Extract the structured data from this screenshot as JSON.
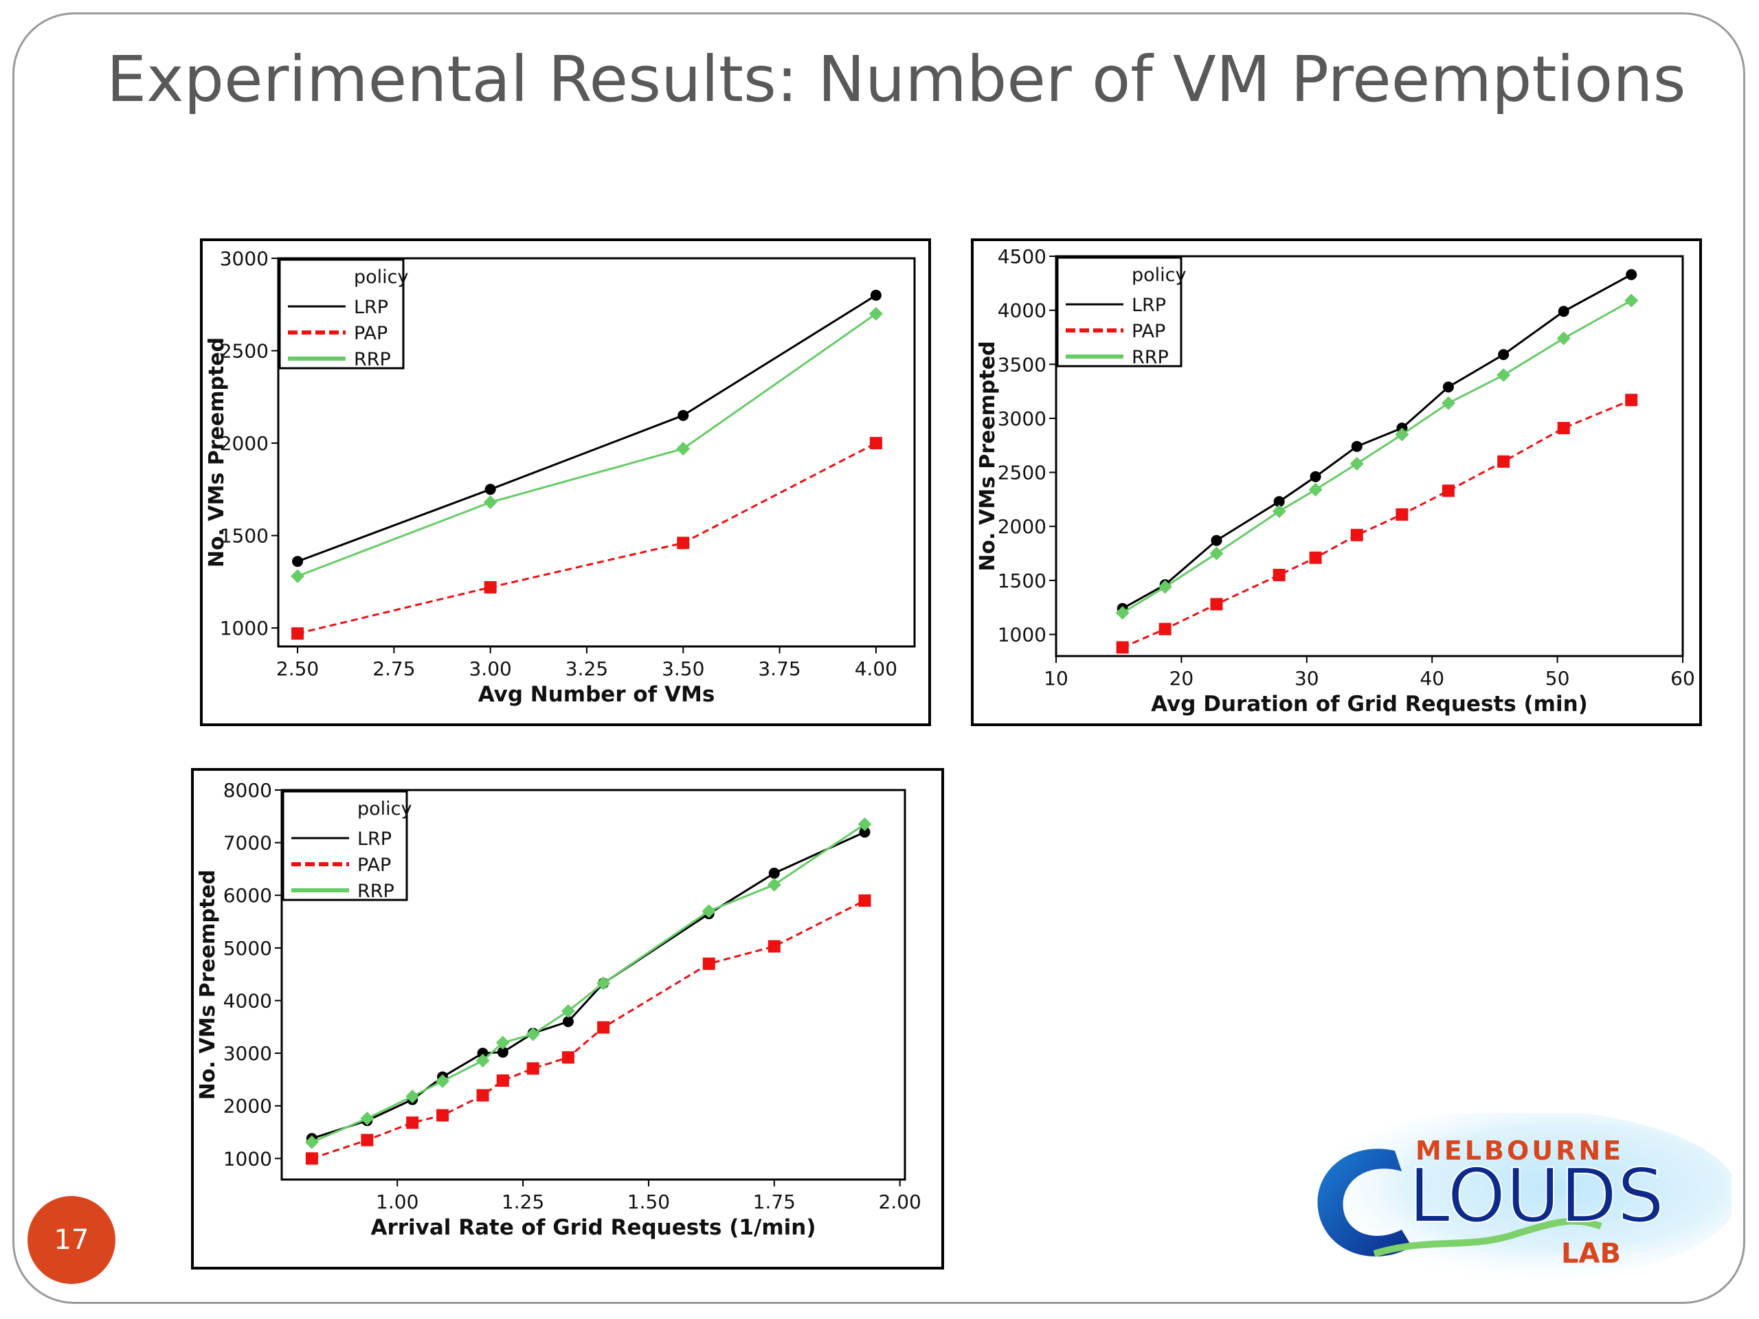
{
  "slide": {
    "title": "Experimental Results: Number of VM Preemptions",
    "page_number": "17"
  },
  "logo": {
    "top_text": "MELBOURNE",
    "main_text": "LOUDS",
    "bottom_text": "LAB"
  },
  "colors": {
    "LRP": "#000000",
    "PAP": "#ee1111",
    "RRP": "#66cc66",
    "accent": "#d9461e"
  },
  "chart_data": [
    {
      "type": "line",
      "title": "",
      "xlabel": "Avg Number of VMs",
      "ylabel": "No. VMs Preempted",
      "xlim": [
        2.45,
        4.1
      ],
      "ylim": [
        900,
        3000
      ],
      "xticks": [
        "2.50",
        "2.75",
        "3.00",
        "3.25",
        "3.50",
        "3.75",
        "4.00"
      ],
      "xtick_values": [
        2.5,
        2.75,
        3.0,
        3.25,
        3.5,
        3.75,
        4.0
      ],
      "yticks": [
        "1000",
        "1500",
        "2000",
        "2500",
        "3000"
      ],
      "ytick_values": [
        1000,
        1500,
        2000,
        2500,
        3000
      ],
      "legend_title": "policy",
      "legend_position": "top-left",
      "grid": false,
      "series": [
        {
          "name": "LRP",
          "x": [
            2.5,
            3.0,
            3.5,
            4.0
          ],
          "y": [
            1360,
            1750,
            2150,
            2800
          ]
        },
        {
          "name": "PAP",
          "x": [
            2.5,
            3.0,
            3.5,
            4.0
          ],
          "y": [
            970,
            1220,
            1460,
            2000
          ]
        },
        {
          "name": "RRP",
          "x": [
            2.5,
            3.0,
            3.5,
            4.0
          ],
          "y": [
            1280,
            1680,
            1970,
            2700
          ]
        }
      ]
    },
    {
      "type": "line",
      "title": "",
      "xlabel": "Avg Duration of Grid Requests (min)",
      "ylabel": "No. VMs Preempted",
      "xlim": [
        10,
        60
      ],
      "ylim": [
        800,
        4500
      ],
      "xticks": [
        "10",
        "20",
        "30",
        "40",
        "50",
        "60"
      ],
      "xtick_values": [
        10,
        20,
        30,
        40,
        50,
        60
      ],
      "yticks": [
        "1000",
        "1500",
        "2000",
        "2500",
        "3000",
        "3500",
        "4000",
        "4500"
      ],
      "ytick_values": [
        1000,
        1500,
        2000,
        2500,
        3000,
        3500,
        4000,
        4500
      ],
      "legend_title": "policy",
      "legend_position": "top-left",
      "grid": false,
      "series": [
        {
          "name": "LRP",
          "x": [
            15.3,
            18.7,
            22.8,
            27.8,
            30.7,
            34.0,
            37.6,
            41.3,
            45.7,
            50.5,
            55.9
          ],
          "y": [
            1240,
            1460,
            1870,
            2230,
            2460,
            2740,
            2910,
            3290,
            3590,
            3990,
            4330
          ]
        },
        {
          "name": "PAP",
          "x": [
            15.3,
            18.7,
            22.8,
            27.8,
            30.7,
            34.0,
            37.6,
            41.3,
            45.7,
            50.5,
            55.9
          ],
          "y": [
            880,
            1050,
            1280,
            1550,
            1710,
            1920,
            2110,
            2330,
            2600,
            2910,
            3170
          ]
        },
        {
          "name": "RRP",
          "x": [
            15.3,
            18.7,
            22.8,
            27.8,
            30.7,
            34.0,
            37.6,
            41.3,
            45.7,
            50.5,
            55.9
          ],
          "y": [
            1200,
            1440,
            1750,
            2140,
            2340,
            2580,
            2850,
            3140,
            3400,
            3740,
            4090
          ]
        }
      ]
    },
    {
      "type": "line",
      "title": "",
      "xlabel": "Arrival Rate of Grid Requests (1/min)",
      "ylabel": "No. VMs Preempted",
      "xlim": [
        0.77,
        2.01
      ],
      "ylim": [
        600,
        8000
      ],
      "xticks": [
        "1.00",
        "1.25",
        "1.50",
        "1.75",
        "2.00"
      ],
      "xtick_values": [
        1.0,
        1.25,
        1.5,
        1.75,
        2.0
      ],
      "yticks": [
        "1000",
        "2000",
        "3000",
        "4000",
        "5000",
        "6000",
        "7000",
        "8000"
      ],
      "ytick_values": [
        1000,
        2000,
        3000,
        4000,
        5000,
        6000,
        7000,
        8000
      ],
      "legend_title": "policy",
      "legend_position": "top-left",
      "grid": false,
      "series": [
        {
          "name": "LRP",
          "x": [
            0.83,
            0.94,
            1.03,
            1.09,
            1.17,
            1.21,
            1.27,
            1.34,
            1.41,
            1.62,
            1.75,
            1.93
          ],
          "y": [
            1380,
            1720,
            2120,
            2550,
            3000,
            3020,
            3380,
            3600,
            4330,
            5650,
            6420,
            7200
          ]
        },
        {
          "name": "PAP",
          "x": [
            0.83,
            0.94,
            1.03,
            1.09,
            1.17,
            1.21,
            1.27,
            1.34,
            1.41,
            1.62,
            1.75,
            1.93
          ],
          "y": [
            1000,
            1350,
            1680,
            1820,
            2200,
            2480,
            2710,
            2920,
            3490,
            4700,
            5030,
            5900
          ]
        },
        {
          "name": "RRP",
          "x": [
            0.83,
            0.94,
            1.03,
            1.09,
            1.17,
            1.21,
            1.27,
            1.34,
            1.41,
            1.62,
            1.75,
            1.93
          ],
          "y": [
            1310,
            1760,
            2180,
            2470,
            2860,
            3200,
            3360,
            3800,
            4330,
            5700,
            6200,
            7350
          ]
        }
      ]
    }
  ]
}
